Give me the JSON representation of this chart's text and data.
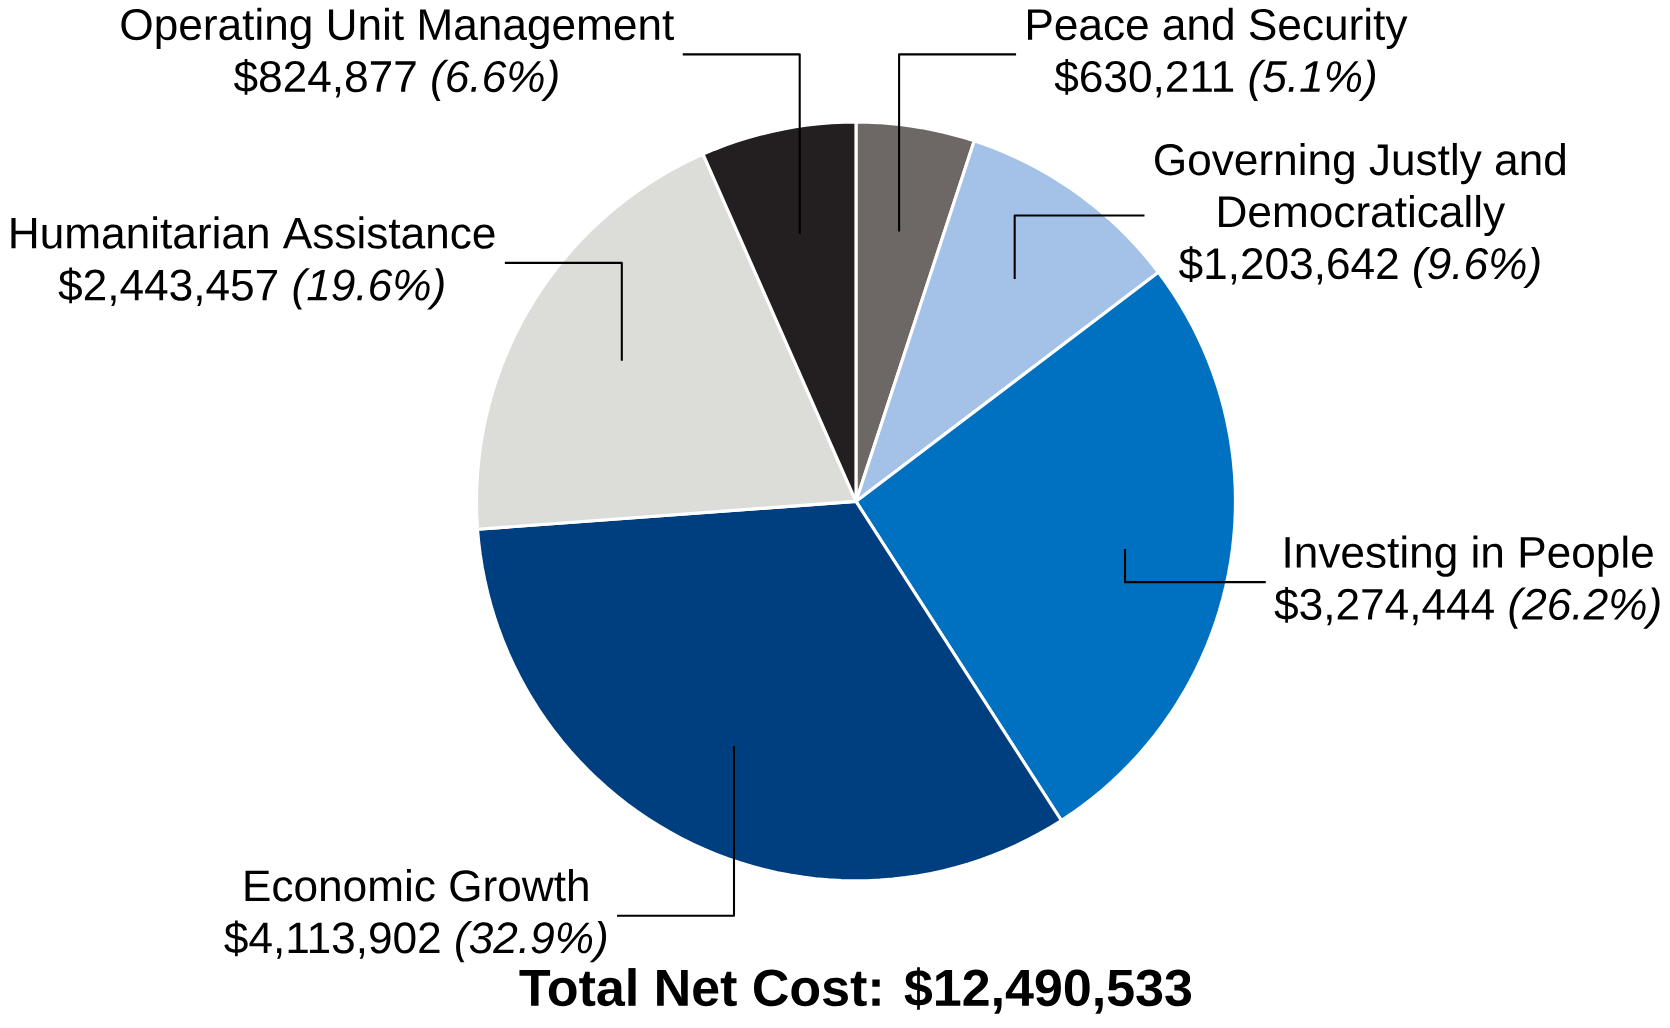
{
  "chart_data": {
    "type": "pie",
    "title": "Total Net Cost: $12,490,533",
    "categories": [
      "Peace and Security",
      "Governing Justly and Democratically",
      "Investing in People",
      "Economic Growth",
      "Humanitarian Assistance",
      "Operating Unit Management"
    ],
    "values": [
      630211,
      1203642,
      3274444,
      4113902,
      2443457,
      824877
    ],
    "value_labels": [
      "$630,211  *(5.1%)*",
      "$1,203,642  *(9.6%)*",
      "$3,274,444  *(26.2%)*",
      "$4,113,902  *(32.9%)*",
      "$2,443,457  *(19.6%)*",
      "$824,877  *(6.6%)*"
    ],
    "colors": [
      "#6d6865",
      "#a4c2e8",
      "#0070c0",
      "#003f7f",
      "#dcdcd8",
      "#231f20"
    ]
  }
}
